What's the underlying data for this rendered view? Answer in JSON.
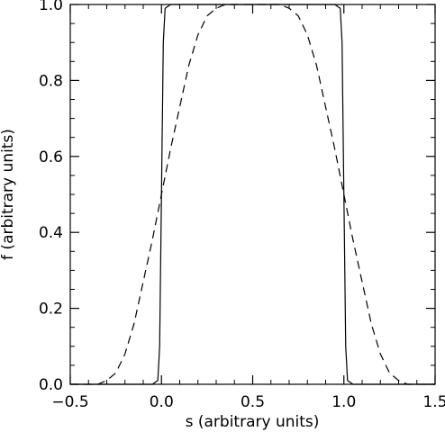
{
  "chart_data": {
    "type": "line",
    "title": "",
    "xlabel": "s (arbitrary units)",
    "ylabel": "f (arbitrary units)",
    "xlim": [
      -0.5,
      1.5
    ],
    "ylim": [
      0.0,
      1.0
    ],
    "xticks": [
      -0.5,
      0.0,
      0.5,
      1.0,
      1.5
    ],
    "xtick_labels": [
      "−0.5",
      "0.0",
      "0.5",
      "1.0",
      "1.5"
    ],
    "yticks": [
      0.0,
      0.2,
      0.4,
      0.6,
      0.8,
      1.0
    ],
    "ytick_labels": [
      "0.0",
      "0.2",
      "0.4",
      "0.6",
      "0.8",
      "1.0"
    ],
    "grid": false,
    "series": [
      {
        "style": "solid",
        "x": [
          -0.5,
          -0.05,
          -0.02,
          -0.01,
          0.0,
          0.01,
          0.02,
          0.05,
          0.5,
          0.95,
          0.98,
          0.99,
          1.0,
          1.01,
          1.02,
          1.05,
          1.5
        ],
        "y": [
          0.0,
          0.0,
          0.01,
          0.1,
          0.5,
          0.9,
          0.99,
          1.0,
          1.0,
          1.0,
          0.99,
          0.9,
          0.5,
          0.1,
          0.01,
          0.0,
          0.0
        ]
      },
      {
        "style": "dashed",
        "x": [
          -0.5,
          -0.35,
          -0.3,
          -0.25,
          -0.2,
          -0.15,
          -0.1,
          -0.05,
          0.0,
          0.05,
          0.1,
          0.15,
          0.2,
          0.25,
          0.3,
          0.35,
          0.4,
          0.5,
          0.6,
          0.65,
          0.7,
          0.75,
          0.8,
          0.85,
          0.9,
          0.95,
          1.0,
          1.05,
          1.1,
          1.15,
          1.2,
          1.25,
          1.3,
          1.35,
          1.5
        ],
        "y": [
          0.0,
          0.0,
          0.01,
          0.03,
          0.08,
          0.16,
          0.27,
          0.38,
          0.5,
          0.62,
          0.73,
          0.84,
          0.92,
          0.97,
          0.99,
          1.0,
          1.0,
          1.0,
          1.0,
          1.0,
          0.99,
          0.97,
          0.92,
          0.84,
          0.73,
          0.62,
          0.5,
          0.38,
          0.27,
          0.16,
          0.08,
          0.03,
          0.01,
          0.0,
          0.0
        ]
      }
    ]
  }
}
